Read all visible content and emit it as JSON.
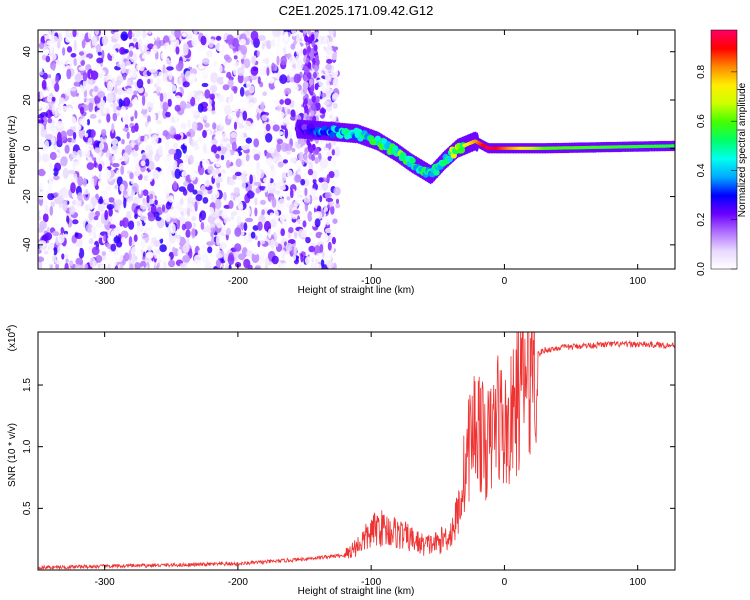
{
  "figure": {
    "title": "C2E1.2025.171.09.42.G12"
  },
  "chart_data": [
    {
      "type": "heatmap",
      "title": "C2E1.2025.171.09.42.G12",
      "xlabel": "Height of straight line (km)",
      "ylabel": "Frequency (Hz)",
      "xlim": [
        -350,
        128
      ],
      "ylim": [
        -50,
        49
      ],
      "xticks": [
        -300,
        -200,
        -100,
        0,
        100
      ],
      "yticks": [
        -40,
        -20,
        0,
        20,
        40
      ],
      "colorbar": {
        "label": "Normalized spectral amplitude",
        "range": [
          0.0,
          0.97
        ],
        "ticks": [
          0.0,
          0.2,
          0.4,
          0.6,
          0.8
        ],
        "colormap": [
          "#ffffff",
          "#e8d8ff",
          "#b070ff",
          "#6a00ff",
          "#0000ff",
          "#00aaff",
          "#00ffee",
          "#00ff66",
          "#44ff00",
          "#ccff00",
          "#ffee00",
          "#ff8800",
          "#ff0000",
          "#ff0066"
        ]
      },
      "ridge": {
        "description_points": [
          {
            "x": -155,
            "y": 8,
            "amp": 0.2
          },
          {
            "x": -130,
            "y": 7,
            "amp": 0.4
          },
          {
            "x": -110,
            "y": 6,
            "amp": 0.45
          },
          {
            "x": -95,
            "y": 3,
            "amp": 0.5
          },
          {
            "x": -80,
            "y": -2,
            "amp": 0.55
          },
          {
            "x": -70,
            "y": -6,
            "amp": 0.5
          },
          {
            "x": -55,
            "y": -11,
            "amp": 0.45
          },
          {
            "x": -45,
            "y": -5,
            "amp": 0.5
          },
          {
            "x": -35,
            "y": 0,
            "amp": 0.65
          },
          {
            "x": -22,
            "y": 3,
            "amp": 0.8
          },
          {
            "x": -12,
            "y": 0,
            "amp": 0.95
          },
          {
            "x": 0,
            "y": 0,
            "amp": 0.85
          },
          {
            "x": 30,
            "y": 0,
            "amp": 0.6
          },
          {
            "x": 128,
            "y": 1,
            "amp": 0.55
          }
        ]
      }
    },
    {
      "type": "line",
      "xlabel": "Height of straight line (km)",
      "ylabel": "SNR (10 * v/v)",
      "y_multiplier_label": "(x10",
      "y_multiplier_exp": "4",
      "y_multiplier_close": ")",
      "xlim": [
        -350,
        128
      ],
      "ylim": [
        0.0,
        1.93
      ],
      "xticks": [
        -300,
        -200,
        -100,
        0,
        100
      ],
      "yticks": [
        0.5,
        1.0,
        1.5
      ],
      "color": "#ee3333",
      "series": [
        {
          "x": [
            -350,
            -300,
            -250,
            -200,
            -160,
            -140,
            -120,
            -110,
            -100,
            -95,
            -80,
            -70,
            -60,
            -50,
            -40,
            -35,
            -30,
            -25,
            -20,
            -15,
            -10,
            -5,
            0,
            5,
            10,
            15,
            20,
            25,
            30,
            40,
            60,
            80,
            100,
            128
          ],
          "y": [
            0.02,
            0.03,
            0.04,
            0.05,
            0.08,
            0.1,
            0.12,
            0.2,
            0.3,
            0.35,
            0.3,
            0.25,
            0.2,
            0.22,
            0.3,
            0.45,
            0.8,
            1.1,
            1.2,
            1.0,
            1.05,
            1.3,
            1.1,
            1.2,
            1.4,
            1.55,
            1.7,
            1.75,
            1.78,
            1.8,
            1.82,
            1.83,
            1.83,
            1.82
          ]
        }
      ]
    }
  ]
}
